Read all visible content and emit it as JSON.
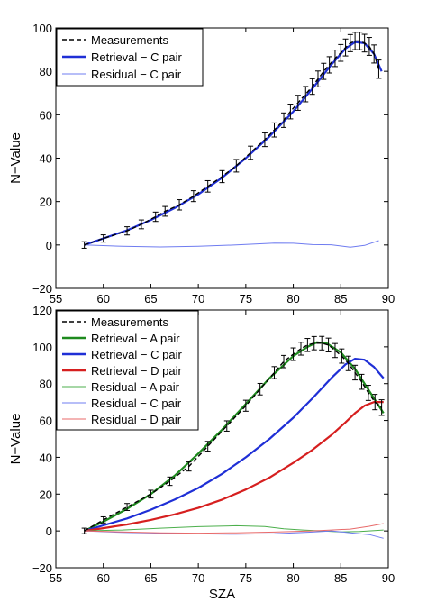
{
  "chart_data": [
    {
      "type": "line",
      "xlabel": "",
      "ylabel": "N−Value",
      "xlim": [
        55,
        90
      ],
      "ylim": [
        -20,
        100
      ],
      "xticks": [
        "55",
        "60",
        "65",
        "70",
        "75",
        "80",
        "85",
        "90"
      ],
      "yticks": [
        "−20",
        "0",
        "20",
        "40",
        "60",
        "80",
        "100"
      ],
      "legend_position": "top-left",
      "legend": [
        {
          "label": "Measurements",
          "color": "#000000",
          "style": "dashed"
        },
        {
          "label": "Retrieval − C pair",
          "color": "#1f2fd6",
          "style": "thick"
        },
        {
          "label": "Residual − C pair",
          "color": "#6f7cf0",
          "style": "thin"
        }
      ],
      "series": [
        {
          "name": "Measurements",
          "color": "#000000",
          "errorbars": true,
          "x": [
            58,
            60,
            62.5,
            64,
            65.5,
            66.5,
            68,
            69.5,
            71,
            72.5,
            74,
            75.5,
            77,
            78,
            79,
            79.7,
            80.5,
            81.3,
            82,
            82.6,
            83.2,
            83.8,
            84.4,
            85,
            85.5,
            86,
            86.5,
            87,
            87.5,
            88,
            88.5,
            89
          ],
          "y": [
            0,
            3,
            6.5,
            9.5,
            13,
            15.5,
            18.5,
            22.5,
            27,
            31.5,
            36.5,
            42.5,
            48.5,
            53,
            57.5,
            61.5,
            65.5,
            69.5,
            73,
            76.5,
            80,
            83,
            86,
            88.5,
            91,
            93,
            94,
            94,
            93,
            91.5,
            88,
            81
          ]
        },
        {
          "name": "Retrieval − C pair",
          "color": "#1f2fd6",
          "x": [
            58,
            60,
            62.5,
            65,
            67.5,
            70,
            72.5,
            75,
            77.5,
            80,
            82,
            84,
            85.5,
            86.5,
            87.5,
            88.5,
            89.3
          ],
          "y": [
            0,
            3,
            6.8,
            11.5,
            17,
            23.3,
            31,
            40,
            50,
            61.5,
            72,
            83,
            90.5,
            93.5,
            93,
            88,
            80
          ]
        },
        {
          "name": "Residual − C pair",
          "color": "#6f7cf0",
          "x": [
            58,
            62,
            66,
            70,
            74,
            78,
            80,
            82,
            84,
            86,
            87.5,
            89
          ],
          "y": [
            0,
            -0.6,
            -0.9,
            -0.6,
            0,
            0.9,
            0.8,
            0.2,
            0.1,
            -1,
            -0.2,
            2
          ]
        }
      ]
    },
    {
      "type": "line",
      "xlabel": "SZA",
      "ylabel": "N−Value",
      "xlim": [
        55,
        90
      ],
      "ylim": [
        -20,
        120
      ],
      "xticks": [
        "55",
        "60",
        "65",
        "70",
        "75",
        "80",
        "85",
        "90"
      ],
      "yticks": [
        "−20",
        "0",
        "20",
        "40",
        "60",
        "80",
        "100",
        "120"
      ],
      "legend_position": "top-left",
      "legend": [
        {
          "label": "Measurements",
          "color": "#000000",
          "style": "dashed"
        },
        {
          "label": "Retrieval − A pair",
          "color": "#1e8a1e",
          "style": "thick"
        },
        {
          "label": "Retrieval − C pair",
          "color": "#1f2fd6",
          "style": "thick"
        },
        {
          "label": "Retrieval − D pair",
          "color": "#d61f1f",
          "style": "thick"
        },
        {
          "label": "Residual − A pair",
          "color": "#4caf4c",
          "style": "thin"
        },
        {
          "label": "Residual − C pair",
          "color": "#6f7cf0",
          "style": "thin"
        },
        {
          "label": "Residual − D pair",
          "color": "#e86a6a",
          "style": "thin"
        }
      ],
      "series": [
        {
          "name": "Measurements",
          "color": "#000000",
          "errorbars": true,
          "x": [
            58,
            60,
            62.5,
            65,
            67,
            69,
            71,
            73,
            75,
            76.5,
            78,
            79,
            80,
            80.8,
            81.5,
            82.2,
            83,
            83.7,
            84.4,
            85.1,
            85.8,
            86.5,
            87.2,
            87.9,
            88.6,
            89.3
          ],
          "y": [
            0,
            6,
            13,
            20,
            27,
            35,
            46,
            57,
            68,
            77,
            86,
            92,
            96,
            99,
            101,
            102,
            102,
            101,
            98,
            95,
            91,
            86,
            81,
            75,
            70,
            67
          ]
        },
        {
          "name": "Retrieval − A pair",
          "color": "#1e8a1e",
          "x": [
            58,
            60,
            62.5,
            65,
            67.5,
            70,
            72.5,
            75,
            77.5,
            80,
            81.5,
            82.5,
            83.5,
            85,
            86.5,
            88,
            89.5
          ],
          "y": [
            0,
            5,
            12,
            20,
            30,
            42,
            55,
            69,
            83,
            95,
            100,
            102.5,
            102,
            97,
            88,
            76,
            64
          ]
        },
        {
          "name": "Retrieval − C pair",
          "color": "#1f2fd6",
          "x": [
            58,
            60,
            62.5,
            65,
            67.5,
            70,
            72.5,
            75,
            77.5,
            80,
            82,
            84,
            85.5,
            86.5,
            87.5,
            88.5,
            89.5
          ],
          "y": [
            0,
            3,
            6.8,
            11.5,
            17,
            23.3,
            31,
            40,
            50,
            61.5,
            72,
            83,
            90.5,
            93.5,
            93,
            89,
            83
          ]
        },
        {
          "name": "Retrieval − D pair",
          "color": "#d61f1f",
          "x": [
            58,
            60,
            62.5,
            65,
            67.5,
            70,
            72.5,
            75,
            77.5,
            80,
            82,
            84,
            85.5,
            86.5,
            87.5,
            88.5,
            89.5
          ],
          "y": [
            0,
            1.5,
            3.5,
            6,
            9,
            12.5,
            17,
            22.5,
            29,
            37,
            44,
            52,
            59,
            64,
            68,
            70,
            70
          ]
        },
        {
          "name": "Residual − A pair",
          "color": "#4caf4c",
          "x": [
            58,
            62,
            66,
            70,
            74,
            77,
            79,
            81,
            83,
            85,
            87,
            89.5
          ],
          "y": [
            0,
            0.5,
            1.5,
            2.3,
            2.8,
            2.4,
            1.2,
            0.5,
            0,
            -0.5,
            -0.3,
            0.5
          ]
        },
        {
          "name": "Residual − C pair",
          "color": "#6f7cf0",
          "x": [
            58,
            62,
            66,
            70,
            74,
            78,
            82,
            84,
            86,
            88,
            89.5
          ],
          "y": [
            0,
            -0.8,
            -1.2,
            -1.6,
            -1.8,
            -1.5,
            -0.6,
            0,
            -1,
            -2,
            -4
          ]
        },
        {
          "name": "Residual − D pair",
          "color": "#e86a6a",
          "x": [
            58,
            62,
            66,
            70,
            74,
            78,
            82,
            84,
            86,
            88,
            89.5
          ],
          "y": [
            0,
            -0.5,
            -1,
            -1.2,
            -1,
            -0.6,
            0,
            0.5,
            1,
            2.5,
            4
          ]
        }
      ]
    }
  ]
}
